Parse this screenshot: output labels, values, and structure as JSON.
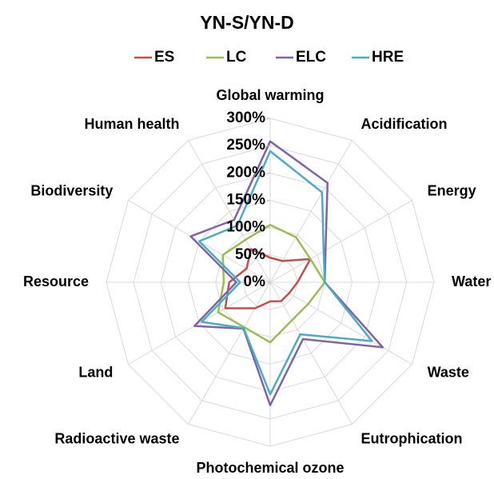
{
  "chart_data": {
    "type": "radar",
    "title": "YN-S/YN-D",
    "categories": [
      "Global warming",
      "Acidification",
      "Energy",
      "Water",
      "Waste",
      "Eutrophication",
      "Photochemical ozone",
      "Radioactive waste",
      "Land",
      "Resource",
      "Biodiversity",
      "Human health"
    ],
    "series": [
      {
        "name": "ES",
        "color": "#c0504d",
        "values": [
          45,
          45,
          85,
          50,
          40,
          40,
          35,
          55,
          95,
          75,
          50,
          70
        ]
      },
      {
        "name": "LC",
        "color": "#9bbb59",
        "values": [
          105,
          95,
          85,
          100,
          80,
          80,
          110,
          95,
          110,
          85,
          100,
          90
        ]
      },
      {
        "name": "ELC",
        "color": "#8064a2",
        "values": [
          258,
          210,
          117,
          100,
          238,
          120,
          225,
          98,
          160,
          62,
          168,
          132
        ]
      },
      {
        "name": "HRE",
        "color": "#4bacc6",
        "values": [
          240,
          190,
          113,
          100,
          215,
          110,
          205,
          97,
          145,
          55,
          150,
          120
        ]
      }
    ],
    "ylim": [
      0,
      300
    ],
    "yticks": [
      {
        "value": 0,
        "label": "0%"
      },
      {
        "value": 50,
        "label": "50%"
      },
      {
        "value": 100,
        "label": "100%"
      },
      {
        "value": 150,
        "label": "150%"
      },
      {
        "value": 200,
        "label": "200%"
      },
      {
        "value": 250,
        "label": "250%"
      },
      {
        "value": 300,
        "label": "300%"
      }
    ],
    "grid": true,
    "legend": "top"
  }
}
